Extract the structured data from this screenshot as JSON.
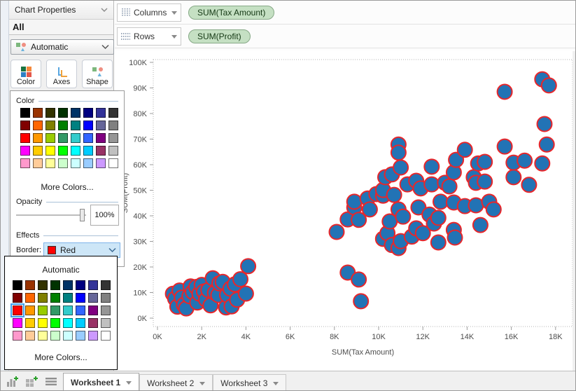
{
  "panel": {
    "title": "Chart Properties",
    "section_label": "All",
    "mark_type_label": "Automatic",
    "buttons": {
      "color": "Color",
      "axes": "Axes",
      "shape": "Shape"
    },
    "color_panel": {
      "color_group": "Color",
      "more_colors": "More Colors...",
      "opacity_group": "Opacity",
      "opacity_value": "100%",
      "effects_group": "Effects",
      "border_label": "Border:",
      "border_value": "Red",
      "border_swatch_color": "#ff0000"
    },
    "border_dropdown": {
      "automatic": "Automatic",
      "more_colors": "More Colors...",
      "selected_index": 16
    },
    "palette": [
      "#000000",
      "#993300",
      "#333300",
      "#003300",
      "#003366",
      "#000080",
      "#333399",
      "#333333",
      "#800000",
      "#ff6600",
      "#808000",
      "#008000",
      "#008080",
      "#0000ff",
      "#666699",
      "#808080",
      "#ff0000",
      "#ff9900",
      "#99cc00",
      "#339966",
      "#33cccc",
      "#3366ff",
      "#800080",
      "#969696",
      "#ff00ff",
      "#ffcc00",
      "#ffff00",
      "#00ff00",
      "#00ffff",
      "#00ccff",
      "#993366",
      "#c0c0c0",
      "#ff99cc",
      "#ffcc99",
      "#ffff99",
      "#ccffcc",
      "#ccffff",
      "#99ccff",
      "#cc99ff",
      "#ffffff"
    ]
  },
  "shelves": {
    "columns": {
      "label": "Columns",
      "pill": "SUM(Tax Amount)"
    },
    "rows": {
      "label": "Rows",
      "pill": "SUM(Profit)"
    }
  },
  "chart_data": {
    "type": "scatter",
    "xlabel": "SUM(Tax Amount)",
    "ylabel": "SUM(Profit)",
    "x_ticks": [
      "0K",
      "2K",
      "4K",
      "6K",
      "8K",
      "10K",
      "12K",
      "14K",
      "16K",
      "18K"
    ],
    "y_ticks": [
      "0K",
      "10K",
      "20K",
      "30K",
      "40K",
      "50K",
      "60K",
      "70K",
      "80K",
      "90K",
      "100K"
    ],
    "xlim_k": [
      -0.2,
      18.8
    ],
    "ylim_k": [
      -3.5,
      100.9
    ],
    "units": "thousands",
    "grid": false,
    "marker": {
      "fill": "#2273b5",
      "stroke": "#e8262a",
      "radius_px": 10.5
    },
    "points": [
      [
        0.7,
        9.5
      ],
      [
        0.8,
        7.6
      ],
      [
        0.9,
        4.5
      ],
      [
        1.0,
        10.8
      ],
      [
        1.1,
        8.0
      ],
      [
        1.2,
        5.2
      ],
      [
        1.3,
        3.8
      ],
      [
        1.45,
        8.6
      ],
      [
        1.5,
        12.4
      ],
      [
        1.6,
        10.2
      ],
      [
        1.75,
        12.2
      ],
      [
        1.8,
        6.1
      ],
      [
        1.9,
        9.6
      ],
      [
        2.0,
        13.0
      ],
      [
        2.1,
        10.4
      ],
      [
        2.2,
        7.2
      ],
      [
        2.3,
        11.0
      ],
      [
        2.4,
        5.0
      ],
      [
        2.5,
        15.6
      ],
      [
        2.6,
        9.9
      ],
      [
        2.75,
        9.0
      ],
      [
        2.8,
        13.6
      ],
      [
        2.95,
        14.2
      ],
      [
        3.1,
        4.2
      ],
      [
        3.15,
        9.0
      ],
      [
        3.3,
        11.5
      ],
      [
        3.35,
        4.6
      ],
      [
        3.5,
        13.2
      ],
      [
        3.6,
        7.2
      ],
      [
        3.75,
        15.2
      ],
      [
        4.0,
        9.6
      ],
      [
        4.1,
        20.3
      ],
      [
        8.6,
        17.8
      ],
      [
        9.1,
        15.1
      ],
      [
        9.2,
        6.6
      ],
      [
        8.1,
        33.7
      ],
      [
        8.6,
        38.6
      ],
      [
        8.9,
        43.3
      ],
      [
        8.9,
        45.5
      ],
      [
        9.1,
        38.4
      ],
      [
        9.5,
        46.8
      ],
      [
        9.6,
        42.5
      ],
      [
        9.9,
        48.5
      ],
      [
        10.2,
        47.9
      ],
      [
        10.2,
        50.1
      ],
      [
        10.3,
        55.1
      ],
      [
        10.2,
        31.0
      ],
      [
        10.4,
        33.2
      ],
      [
        10.5,
        37.8
      ],
      [
        10.6,
        28.6
      ],
      [
        10.6,
        56.2
      ],
      [
        10.7,
        48.2
      ],
      [
        10.9,
        67.9
      ],
      [
        10.9,
        64.7
      ],
      [
        11.0,
        58.9
      ],
      [
        10.9,
        42.5
      ],
      [
        10.9,
        27.4
      ],
      [
        11.0,
        30.1
      ],
      [
        11.1,
        39.7
      ],
      [
        11.3,
        52.3
      ],
      [
        11.5,
        31.9
      ],
      [
        11.7,
        53.7
      ],
      [
        11.7,
        35.1
      ],
      [
        11.8,
        43.3
      ],
      [
        11.9,
        50.7
      ],
      [
        12.0,
        33.2
      ],
      [
        12.3,
        40.5
      ],
      [
        12.4,
        59.2
      ],
      [
        12.4,
        52.3
      ],
      [
        12.5,
        37.0
      ],
      [
        12.7,
        39.2
      ],
      [
        12.7,
        29.6
      ],
      [
        12.8,
        45.5
      ],
      [
        13.0,
        52.9
      ],
      [
        13.2,
        51.5
      ],
      [
        13.4,
        57.0
      ],
      [
        13.4,
        45.2
      ],
      [
        13.4,
        34.5
      ],
      [
        13.45,
        31.5
      ],
      [
        13.5,
        61.9
      ],
      [
        13.9,
        65.8
      ],
      [
        13.9,
        43.8
      ],
      [
        14.3,
        55.1
      ],
      [
        14.4,
        52.9
      ],
      [
        14.4,
        44.1
      ],
      [
        14.5,
        60.5
      ],
      [
        14.6,
        36.4
      ],
      [
        15.0,
        45.5
      ],
      [
        15.2,
        42.5
      ],
      [
        14.8,
        61.1
      ],
      [
        14.8,
        53.4
      ],
      [
        15.7,
        88.5
      ],
      [
        15.7,
        67.1
      ],
      [
        16.1,
        60.8
      ],
      [
        16.6,
        61.6
      ],
      [
        16.1,
        55.1
      ],
      [
        16.8,
        52.1
      ],
      [
        17.4,
        93.4
      ],
      [
        17.7,
        91.0
      ],
      [
        17.5,
        75.9
      ],
      [
        17.6,
        67.9
      ],
      [
        17.4,
        60.5
      ]
    ]
  },
  "tabs": [
    {
      "label": "Worksheet 1",
      "active": true
    },
    {
      "label": "Worksheet 2",
      "active": false
    },
    {
      "label": "Worksheet 3",
      "active": false
    }
  ]
}
